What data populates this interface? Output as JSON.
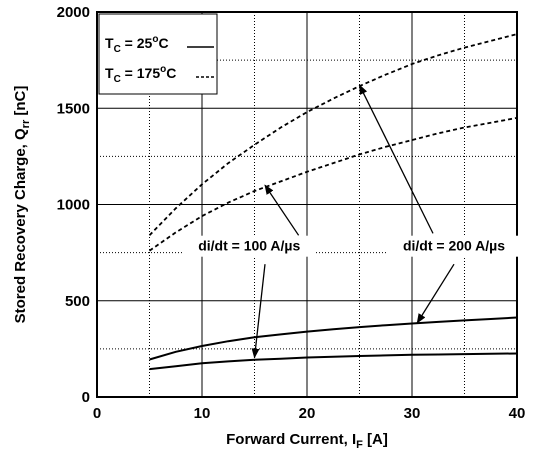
{
  "chart_data": {
    "type": "line",
    "xlabel": {
      "main": "Forward Current, I",
      "sub": "F",
      "unit": " [A]"
    },
    "ylabel": {
      "main": "Stored Recovery Charge, Q",
      "sub": "rr",
      "unit": " [nC]"
    },
    "xlim": [
      0,
      40
    ],
    "ylim": [
      0,
      2000
    ],
    "x_ticks": [
      0,
      10,
      20,
      30,
      40
    ],
    "y_ticks": [
      0,
      500,
      1000,
      1500,
      2000
    ],
    "x_tick_labels": [
      "0",
      "10",
      "20",
      "30",
      "40"
    ],
    "y_tick_labels": [
      "0",
      "500",
      "1000",
      "1500",
      "2000"
    ],
    "grid": {
      "major": "solid",
      "minor": "dotted",
      "minor_y_step": 250
    },
    "legend": {
      "placement": "top-left",
      "entries": [
        {
          "prefix": "T",
          "sub": "C",
          "value": " = 25",
          "sup": "o",
          "unit": "C",
          "style": "solid"
        },
        {
          "prefix": "T",
          "sub": "C",
          "value": " = 175",
          "sup": "o",
          "unit": "C",
          "style": "dashed"
        }
      ]
    },
    "series": [
      {
        "style": "dashed",
        "x": [
          5,
          7.5,
          10,
          12.5,
          15,
          17.5,
          20,
          22.5,
          25,
          27.5,
          30,
          32.5,
          35,
          37.5,
          40
        ],
        "y": [
          840,
          980,
          1105,
          1215,
          1310,
          1400,
          1480,
          1550,
          1615,
          1675,
          1730,
          1775,
          1815,
          1850,
          1885
        ]
      },
      {
        "style": "dashed",
        "x": [
          5,
          7.5,
          10,
          12.5,
          15,
          17.5,
          20,
          22.5,
          25,
          27.5,
          30,
          32.5,
          35,
          37.5,
          40
        ],
        "y": [
          760,
          855,
          940,
          1010,
          1070,
          1120,
          1170,
          1215,
          1260,
          1300,
          1335,
          1370,
          1400,
          1425,
          1450
        ]
      },
      {
        "style": "solid",
        "x": [
          5,
          7.5,
          10,
          12.5,
          15,
          17.5,
          20,
          22.5,
          25,
          27.5,
          30,
          32.5,
          35,
          37.5,
          40
        ],
        "y": [
          195,
          235,
          265,
          290,
          310,
          325,
          340,
          352,
          363,
          373,
          382,
          390,
          398,
          405,
          413
        ]
      },
      {
        "style": "solid",
        "x": [
          5,
          7.5,
          10,
          12.5,
          15,
          17.5,
          20,
          22.5,
          25,
          27.5,
          30,
          32.5,
          35,
          37.5,
          40
        ],
        "y": [
          145,
          160,
          175,
          185,
          193,
          199,
          205,
          209,
          213,
          216,
          219,
          221,
          223,
          225,
          226
        ]
      }
    ],
    "annotations": [
      {
        "text": "di/dt = 100 A/µs",
        "text_at": [
          14.5,
          760
        ],
        "arrows": [
          {
            "from": [
              19.2,
              840
            ],
            "to": [
              16.0,
              1100
            ]
          },
          {
            "from": [
              16.0,
              690
            ],
            "to": [
              15.0,
              205
            ]
          }
        ]
      },
      {
        "text": "di/dt = 200 A/µs",
        "text_at": [
          34.0,
          760
        ],
        "arrows": [
          {
            "from": [
              32.0,
              850
            ],
            "to": [
              25.0,
              1620
            ]
          },
          {
            "from": [
              34.0,
              690
            ],
            "to": [
              30.5,
              385
            ]
          }
        ]
      }
    ]
  }
}
